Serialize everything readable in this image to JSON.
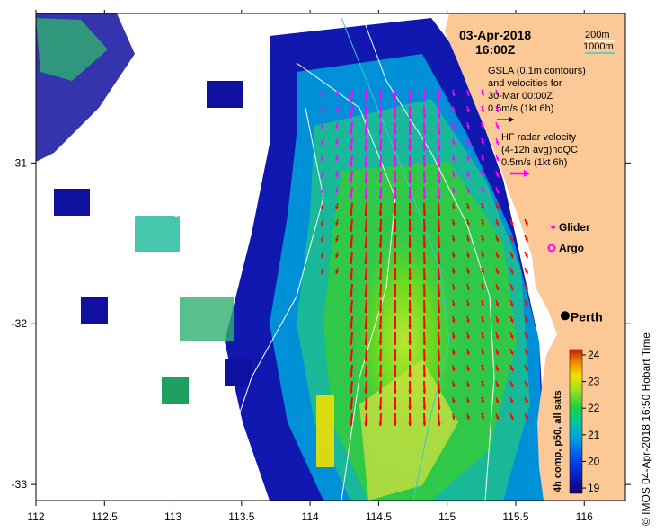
{
  "map": {
    "date": "03-Apr-2018",
    "time": "16:00Z",
    "lon_ticks": [
      "112",
      "112.5",
      "113",
      "113.5",
      "114",
      "114.5",
      "115",
      "115.5",
      "116"
    ],
    "lon_values": [
      112,
      112.5,
      113,
      113.5,
      114,
      114.5,
      115,
      115.5,
      116
    ],
    "lat_ticks": [
      "-31",
      "-32",
      "-33"
    ],
    "lat_values": [
      -31,
      -32,
      -33
    ],
    "lon_range": [
      112,
      116.3
    ],
    "lat_range": [
      -30.07,
      -33.1
    ],
    "place_label": "Perth",
    "place_lon": 115.86,
    "place_lat": -31.95,
    "land_color": "#fbc896",
    "ocean_blank_color": "#ffffff"
  },
  "legend": {
    "contour_200": "200m",
    "contour_1000": "1000m",
    "contour_color": "#40c8c8",
    "gsla_line1": "GSLA (0.1m contours)",
    "gsla_line2": "and velocities for",
    "gsla_line3": "30-Mar 00:00Z",
    "gsla_scale": "0.5m/s (1kt 6h)",
    "hf_line1": "HF radar velocity",
    "hf_line2": "(4-12h avg)noQC",
    "hf_scale": "0.5m/s (1kt 6h)",
    "glider": "Glider",
    "argo": "Argo",
    "marker_color": "#ff00ff",
    "hf_arrow_color": "#ff0000"
  },
  "colorbar": {
    "title": "4h comp, p50, all sats",
    "ticks": [
      "24",
      "23",
      "22",
      "21",
      "20",
      "19"
    ],
    "values": [
      24,
      23,
      22,
      21,
      20,
      19
    ],
    "range": [
      18.8,
      24.2
    ]
  },
  "credit": "© IMOS 04-Apr-2018 16:50 Hobart Time"
}
